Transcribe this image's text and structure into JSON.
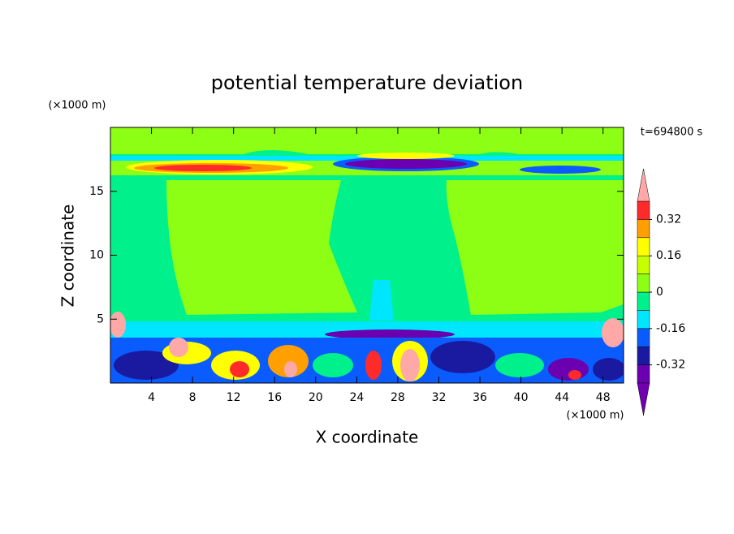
{
  "chart_data": {
    "type": "contour",
    "title": "potential temperature deviation",
    "x_label": "X coordinate",
    "x_unit": "(×1000 m)",
    "y_label": "Z coordinate",
    "y_unit": "(×1000 m)",
    "annotation": "t=694800 s",
    "xlim": [
      0,
      50
    ],
    "xticks": [
      4,
      8,
      12,
      16,
      20,
      24,
      28,
      32,
      36,
      40,
      44,
      48
    ],
    "ylim": [
      0,
      20
    ],
    "yticks": [
      5,
      10,
      15
    ],
    "colorbar": {
      "levels": [
        -0.4,
        -0.32,
        -0.24,
        -0.16,
        -0.08,
        0,
        0.08,
        0.16,
        0.24,
        0.32,
        0.4
      ],
      "colors": [
        "#6a00b0",
        "#1a1aa0",
        "#0a5cff",
        "#00e6ff",
        "#00f08c",
        "#8cff14",
        "#c8ff00",
        "#ffff00",
        "#ffa000",
        "#ff2a2a"
      ],
      "under_color": "#7000b0",
      "over_color": "#ffa8a8",
      "ticks": [
        -0.32,
        -0.16,
        0,
        0.16,
        0.32
      ]
    }
  }
}
